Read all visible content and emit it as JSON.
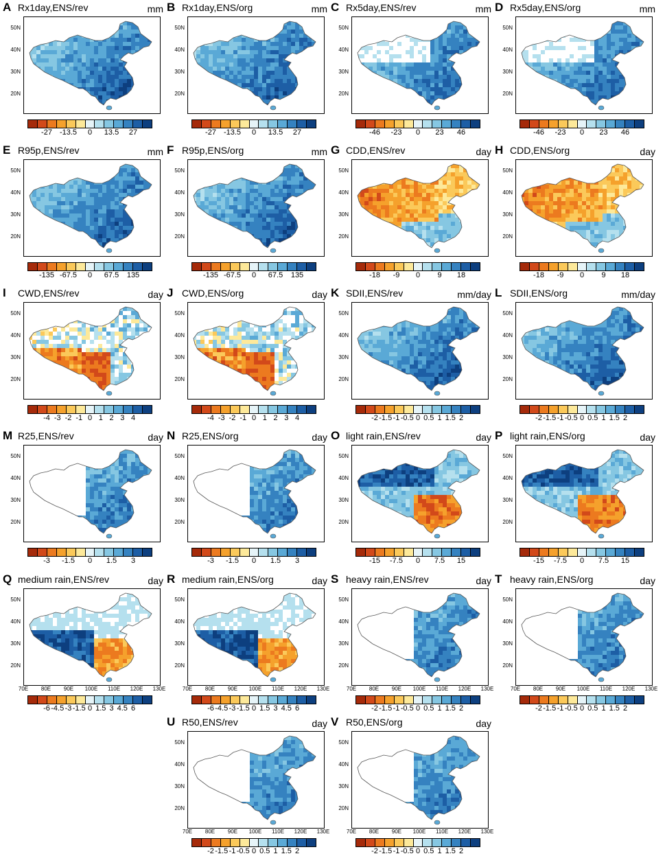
{
  "colormaps": {
    "div": [
      "#a52a0a",
      "#d2491a",
      "#ec7a1f",
      "#f5a12c",
      "#fbc95a",
      "#fde99a",
      "#e6f4f8",
      "#b5e0ee",
      "#86c7e2",
      "#5aa9d6",
      "#3582c0",
      "#1d5ea5",
      "#0d3f7f"
    ]
  },
  "lat_labels": [
    "50N",
    "40N",
    "30N",
    "20N"
  ],
  "lon_labels": [
    "70E",
    "80E",
    "90E",
    "100E",
    "110E",
    "120E",
    "130E"
  ],
  "panels": [
    {
      "id": "A",
      "title": "Rx1day,ENS/rev",
      "unit": "mm",
      "ticks": [
        "-27",
        "-13.5",
        "0",
        "13.5",
        "27"
      ],
      "scheme": "wet"
    },
    {
      "id": "B",
      "title": "Rx1day,ENS/org",
      "unit": "mm",
      "ticks": [
        "-27",
        "-13.5",
        "0",
        "13.5",
        "27"
      ],
      "scheme": "wet"
    },
    {
      "id": "C",
      "title": "Rx5day,ENS/rev",
      "unit": "mm",
      "ticks": [
        "-46",
        "-23",
        "0",
        "23",
        "46"
      ],
      "scheme": "wetwhite"
    },
    {
      "id": "D",
      "title": "Rx5day,ENS/org",
      "unit": "mm",
      "ticks": [
        "-46",
        "-23",
        "0",
        "23",
        "46"
      ],
      "scheme": "wetwhite"
    },
    {
      "id": "E",
      "title": "R95p,ENS/rev",
      "unit": "mm",
      "ticks": [
        "-135",
        "-67.5",
        "0",
        "67.5",
        "135"
      ],
      "scheme": "wet"
    },
    {
      "id": "F",
      "title": "R95p,ENS/org",
      "unit": "mm",
      "ticks": [
        "-135",
        "-67.5",
        "0",
        "67.5",
        "135"
      ],
      "scheme": "wet"
    },
    {
      "id": "G",
      "title": "CDD,ENS/rev",
      "unit": "day",
      "ticks": [
        "-18",
        "-9",
        "0",
        "9",
        "18"
      ],
      "scheme": "dry"
    },
    {
      "id": "H",
      "title": "CDD,ENS/org",
      "unit": "day",
      "ticks": [
        "-18",
        "-9",
        "0",
        "9",
        "18"
      ],
      "scheme": "dry"
    },
    {
      "id": "I",
      "title": "CWD,ENS/rev",
      "unit": "day",
      "ticks": [
        "-4",
        "-3",
        "-2",
        "-1",
        "0",
        "1",
        "2",
        "3",
        "4"
      ],
      "scheme": "mixed"
    },
    {
      "id": "J",
      "title": "CWD,ENS/org",
      "unit": "day",
      "ticks": [
        "-4",
        "-3",
        "-2",
        "-1",
        "0",
        "1",
        "2",
        "3",
        "4"
      ],
      "scheme": "mixed"
    },
    {
      "id": "K",
      "title": "SDII,ENS/rev",
      "unit": "mm/day",
      "ticks": [
        "-2",
        "-1.5",
        "-1",
        "-0.5",
        "0",
        "0.5",
        "1",
        "1.5",
        "2"
      ],
      "scheme": "wet"
    },
    {
      "id": "L",
      "title": "SDII,ENS/org",
      "unit": "mm/day",
      "ticks": [
        "-2",
        "-1.5",
        "-1",
        "-0.5",
        "0",
        "0.5",
        "1",
        "1.5",
        "2"
      ],
      "scheme": "wet"
    },
    {
      "id": "M",
      "title": "R25,ENS/rev",
      "unit": "day",
      "ticks": [
        "-3",
        "-1.5",
        "0",
        "1.5",
        "3"
      ],
      "scheme": "east"
    },
    {
      "id": "N",
      "title": "R25,ENS/org",
      "unit": "day",
      "ticks": [
        "-3",
        "-1.5",
        "0",
        "1.5",
        "3"
      ],
      "scheme": "east"
    },
    {
      "id": "O",
      "title": "light rain,ENS/rev",
      "unit": "day",
      "ticks": [
        "-15",
        "-7.5",
        "0",
        "7.5",
        "15"
      ],
      "scheme": "light"
    },
    {
      "id": "P",
      "title": "light rain,ENS/org",
      "unit": "day",
      "ticks": [
        "-15",
        "-7.5",
        "0",
        "7.5",
        "15"
      ],
      "scheme": "light"
    },
    {
      "id": "Q",
      "title": "medium rain,ENS/rev",
      "unit": "day",
      "ticks": [
        "-6",
        "-4.5",
        "-3",
        "-1.5",
        "0",
        "1.5",
        "3",
        "4.5",
        "6"
      ],
      "scheme": "medium"
    },
    {
      "id": "R",
      "title": "medium rain,ENS/org",
      "unit": "day",
      "ticks": [
        "-6",
        "-4.5",
        "-3",
        "-1.5",
        "0",
        "1.5",
        "3",
        "4.5",
        "6"
      ],
      "scheme": "medium"
    },
    {
      "id": "S",
      "title": "heavy rain,ENS/rev",
      "unit": "day",
      "ticks": [
        "-2",
        "-1.5",
        "-1",
        "-0.5",
        "0",
        "0.5",
        "1",
        "1.5",
        "2"
      ],
      "scheme": "east"
    },
    {
      "id": "T",
      "title": "heavy rain,ENS/org",
      "unit": "day",
      "ticks": [
        "-2",
        "-1.5",
        "-1",
        "-0.5",
        "0",
        "0.5",
        "1",
        "1.5",
        "2"
      ],
      "scheme": "east"
    },
    {
      "id": "U",
      "title": "R50,ENS/rev",
      "unit": "day",
      "ticks": [
        "-2",
        "-1.5",
        "-1",
        "-0.5",
        "0",
        "0.5",
        "1",
        "1.5",
        "2"
      ],
      "scheme": "east"
    },
    {
      "id": "V",
      "title": "R50,ENS/org",
      "unit": "day",
      "ticks": [
        "-2",
        "-1.5",
        "-1",
        "-0.5",
        "0",
        "0.5",
        "1",
        "1.5",
        "2"
      ],
      "scheme": "east"
    }
  ]
}
